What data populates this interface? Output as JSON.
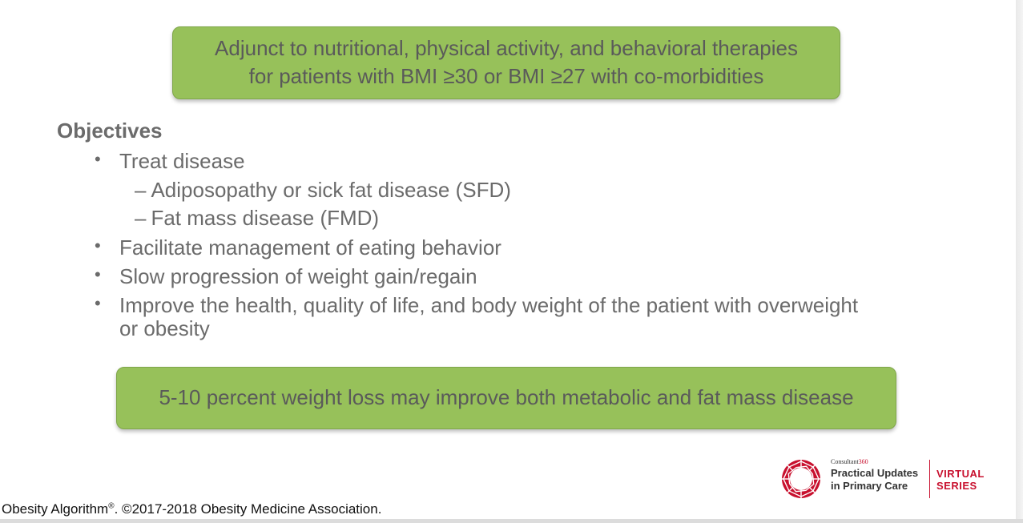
{
  "top_box": {
    "line1": "Adjunct to nutritional, physical activity, and behavioral therapies",
    "line2": "for patients with BMI ≥30 or BMI ≥27 with co-morbidities"
  },
  "objectives": {
    "heading": "Objectives",
    "items": [
      {
        "bullet": "•",
        "text": "Treat disease"
      },
      {
        "dash": "–",
        "text": "Adiposopathy or sick fat disease (SFD)"
      },
      {
        "dash": "–",
        "text": "Fat mass disease (FMD)"
      },
      {
        "bullet": "•",
        "text": "Facilitate management of eating behavior"
      },
      {
        "bullet": "•",
        "text": "Slow progression of weight gain/regain"
      },
      {
        "bullet": "•",
        "text": "Improve the health, quality of life, and body weight of the patient with overweight",
        "text2": "or obesity"
      }
    ]
  },
  "bottom_box": {
    "text": "5-10 percent weight loss may improve both metabolic and fat mass disease"
  },
  "footer": {
    "text_before": "Obesity Algorithm",
    "registered": "®",
    "text_after": ". ©2017-2018 Obesity Medicine Association."
  },
  "logo": {
    "small_brand": "Consultant",
    "small_brand_accent": "360",
    "title_line1": "Practical Updates",
    "title_line2": "in Primary Care",
    "virtual_line1": "VIRTUAL",
    "virtual_line2": "SERIES",
    "icon": "ring-mark-icon",
    "accent_color": "#c8102e"
  },
  "colors": {
    "box_fill": "#97c15a",
    "box_border": "#7fa64a",
    "text": "#6b6b6b"
  }
}
